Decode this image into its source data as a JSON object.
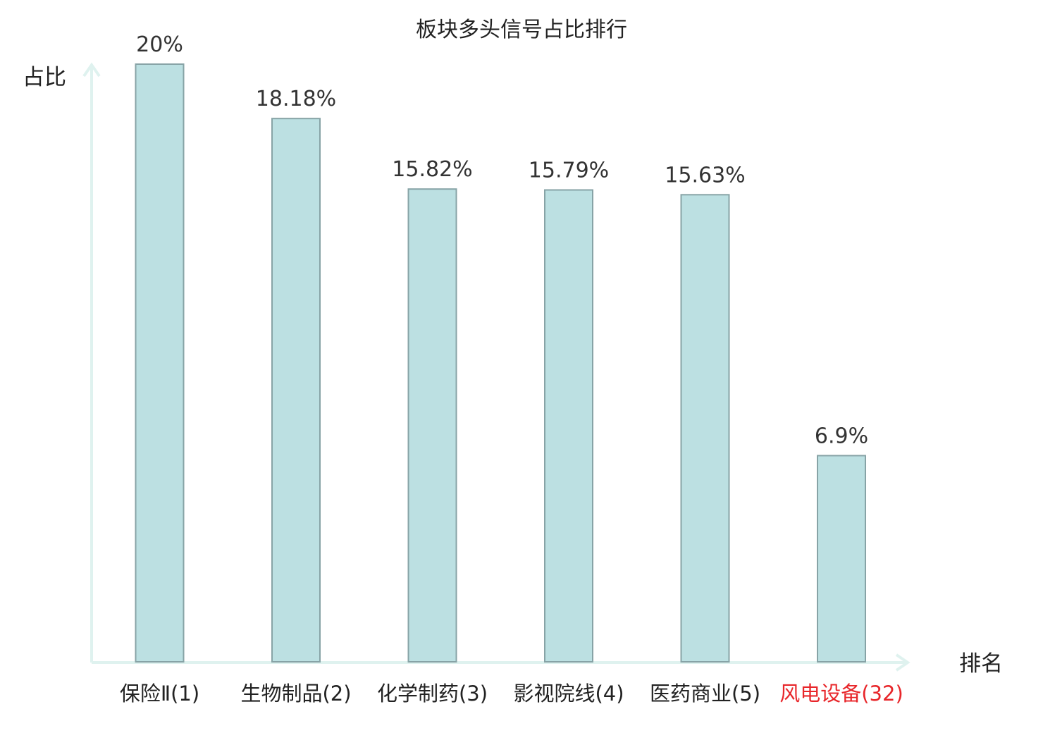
{
  "chart_data": {
    "type": "bar",
    "title": "板块多头信号占比排行",
    "ylabel": "占比",
    "xlabel": "排名",
    "ylim": [
      0,
      20
    ],
    "categories": [
      "保险Ⅱ(1)",
      "生物制品(2)",
      "化学制药(3)",
      "影视院线(4)",
      "医药商业(5)",
      "风电设备(32)"
    ],
    "values": [
      20,
      18.18,
      15.82,
      15.79,
      15.63,
      6.9
    ],
    "value_labels": [
      "20%",
      "18.18%",
      "15.82%",
      "15.79%",
      "15.63%",
      "6.9%"
    ],
    "highlight_index": 5,
    "grid": false,
    "colors": {
      "bar_fill": "#bce0e2",
      "bar_stroke": "#87a3a6",
      "axis": "#dff2ef",
      "text": "#222222",
      "highlight_text": "#e8262a"
    }
  }
}
